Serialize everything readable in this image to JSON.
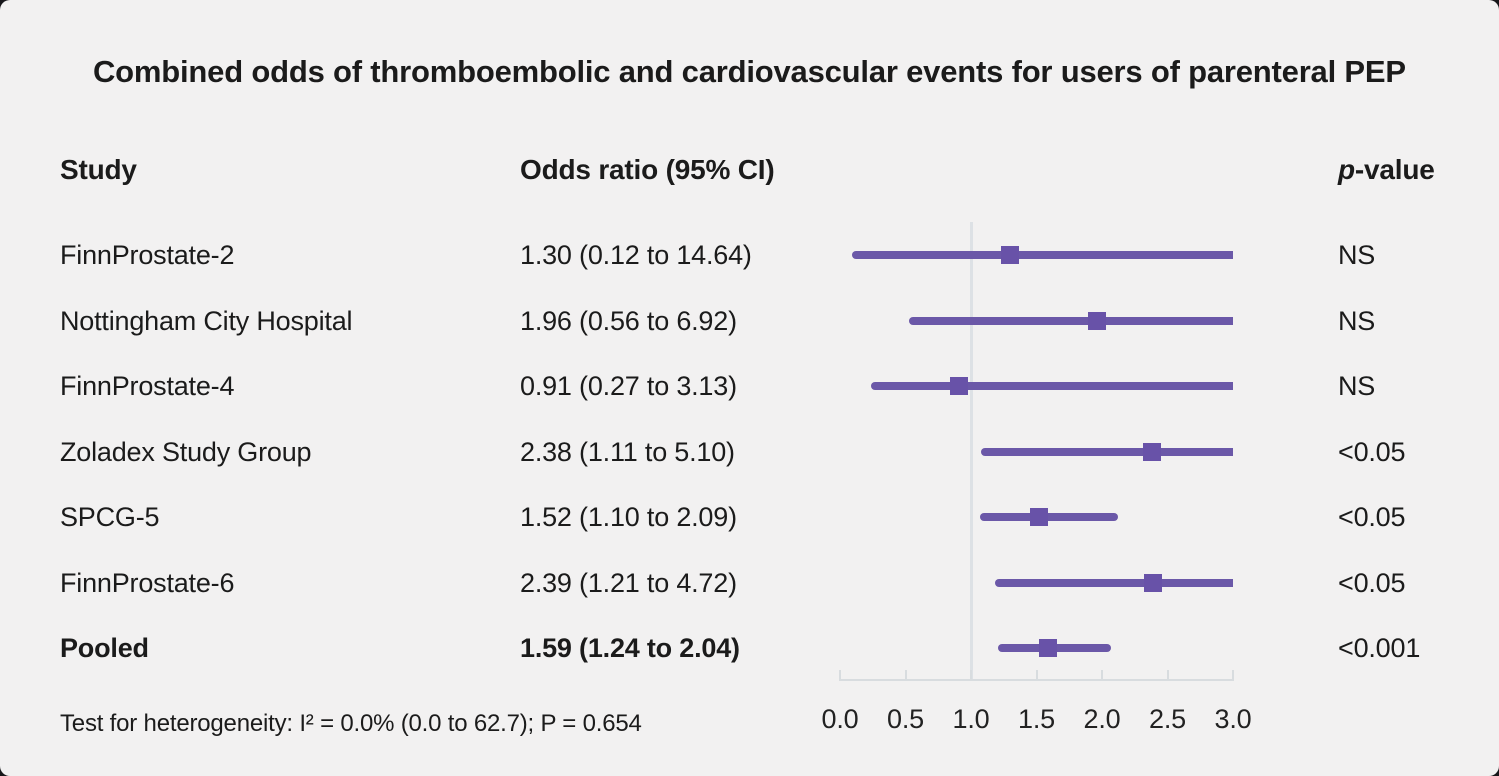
{
  "title": "Combined odds of thromboembolic and cardiovascular events for users of parenteral PEP",
  "columns": {
    "study": "Study",
    "odds_ratio": "Odds ratio (95% CI)",
    "p_header_italic": "p",
    "p_header_rest": "-value"
  },
  "footer": "Test for heterogeneity: I² = 0.0% (0.0 to 62.7); P = 0.654",
  "colors": {
    "background": "#f2f1f1",
    "text": "#1b1b1b",
    "ci_line": "#6b58a8",
    "marker": "#6852a8",
    "reference_line": "#dde1e5",
    "axis": "#d8dcdf"
  },
  "chart_data": {
    "type": "forest",
    "title": "Combined odds of thromboembolic and cardiovascular events for users of parenteral PEP",
    "xlabel": "",
    "xlim": [
      0.0,
      3.0
    ],
    "x_ticks": [
      0.0,
      0.5,
      1.0,
      1.5,
      2.0,
      2.5,
      3.0
    ],
    "x_tick_labels": [
      "0.0",
      "0.5",
      "1.0",
      "1.5",
      "2.0",
      "2.5",
      "3.0"
    ],
    "reference_line_x": 1.0,
    "upper_truncated_at": 3.0,
    "legend": "none",
    "grid": "off",
    "rows": [
      {
        "study": "FinnProstate-2",
        "or": 1.3,
        "ci_low": 0.12,
        "ci_high": 14.64,
        "or_label": "1.30 (0.12 to 14.64)",
        "p_value": "NS",
        "emphasis": false
      },
      {
        "study": "Nottingham City Hospital",
        "or": 1.96,
        "ci_low": 0.56,
        "ci_high": 6.92,
        "or_label": "1.96 (0.56 to 6.92)",
        "p_value": "NS",
        "emphasis": false
      },
      {
        "study": "FinnProstate-4",
        "or": 0.91,
        "ci_low": 0.27,
        "ci_high": 3.13,
        "or_label": "0.91 (0.27 to 3.13)",
        "p_value": "NS",
        "emphasis": false
      },
      {
        "study": "Zoladex Study Group",
        "or": 2.38,
        "ci_low": 1.11,
        "ci_high": 5.1,
        "or_label": "2.38 (1.11 to 5.10)",
        "p_value": "<0.05",
        "emphasis": false
      },
      {
        "study": "SPCG-5",
        "or": 1.52,
        "ci_low": 1.1,
        "ci_high": 2.09,
        "or_label": "1.52 (1.10 to 2.09)",
        "p_value": "<0.05",
        "emphasis": false
      },
      {
        "study": "FinnProstate-6",
        "or": 2.39,
        "ci_low": 1.21,
        "ci_high": 4.72,
        "or_label": "2.39 (1.21 to 4.72)",
        "p_value": "<0.05",
        "emphasis": false
      },
      {
        "study": "Pooled",
        "or": 1.59,
        "ci_low": 1.24,
        "ci_high": 2.04,
        "or_label": "1.59 (1.24 to 2.04)",
        "p_value": "<0.001",
        "emphasis": true
      }
    ]
  }
}
